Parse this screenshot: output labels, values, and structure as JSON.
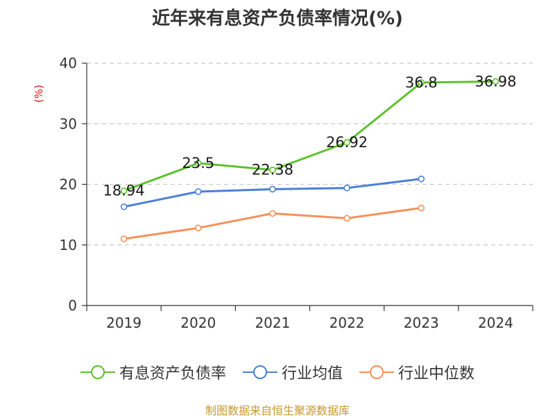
{
  "chart_data": {
    "type": "line",
    "title": "近年来有息资产负债率情况(%)",
    "ylabel": "(%)",
    "categories": [
      "2019",
      "2020",
      "2021",
      "2022",
      "2023",
      "2024"
    ],
    "ylim": [
      0,
      40
    ],
    "yticks": [
      0,
      10,
      20,
      30,
      40
    ],
    "grid": true,
    "legend_position": "bottom",
    "series": [
      {
        "name": "有息资产负债率",
        "color": "#5cc12a",
        "values": [
          18.94,
          23.5,
          22.38,
          26.92,
          36.8,
          36.98
        ],
        "labels": [
          "18.94",
          "23.5",
          "22.38",
          "26.92",
          "36.8",
          "36.98"
        ]
      },
      {
        "name": "行业均值",
        "color": "#4a7fd8",
        "values": [
          16.3,
          18.8,
          19.2,
          19.4,
          20.9,
          null
        ]
      },
      {
        "name": "行业中位数",
        "color": "#f5905a",
        "values": [
          11.0,
          12.8,
          15.2,
          14.4,
          16.1,
          null
        ]
      }
    ]
  },
  "source": "制图数据来自恒生聚源数据库"
}
